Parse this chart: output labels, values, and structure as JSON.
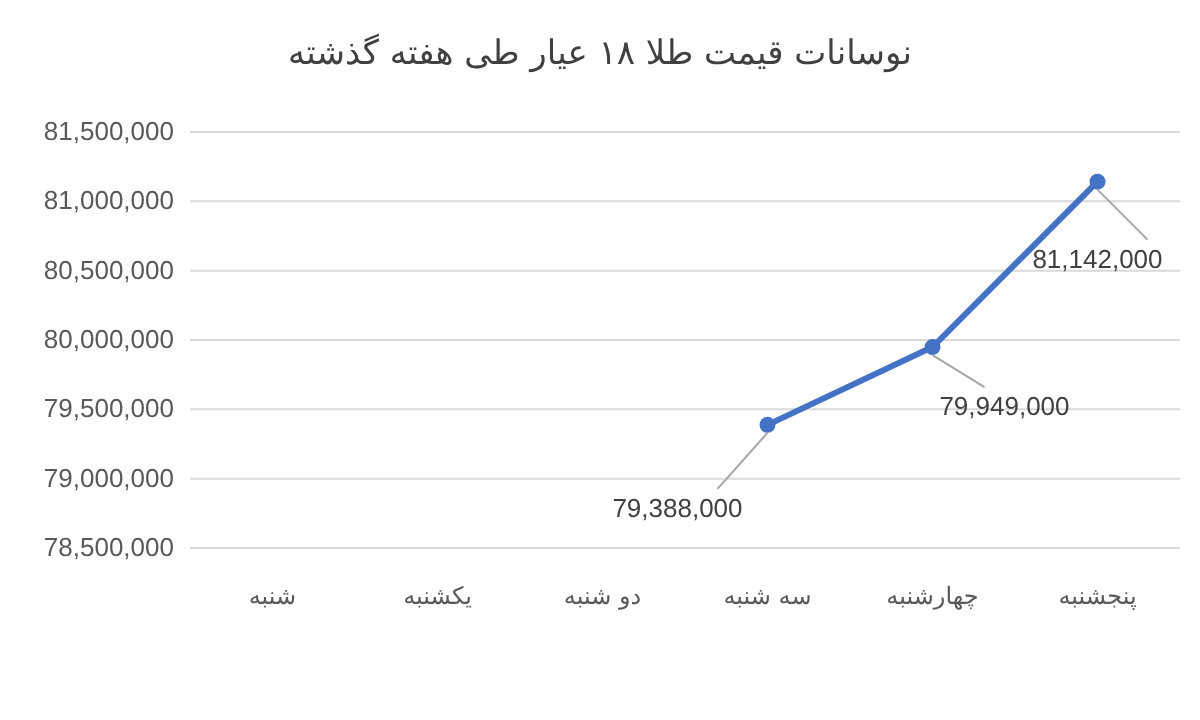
{
  "chart_data": {
    "type": "line",
    "title": "نوسانات قیمت طلا ۱۸ عیار طی هفته گذشته",
    "categories": [
      "شنبه",
      "یکشنبه",
      "دو شنبه",
      "سه شنبه",
      "چهارشنبه",
      "پنجشنبه"
    ],
    "series": [
      {
        "color": "#4472c4",
        "values": [
          null,
          null,
          null,
          79388000,
          79949000,
          81142000
        ],
        "value_labels": [
          null,
          null,
          null,
          "79,388,000",
          "79,949,000",
          "81,142,000"
        ]
      }
    ],
    "ylim": [
      78500000,
      81500000
    ],
    "yticks": [
      {
        "value": 78500000,
        "label": "78,500,000"
      },
      {
        "value": 79000000,
        "label": "79,000,000"
      },
      {
        "value": 79500000,
        "label": "79,500,000"
      },
      {
        "value": 80000000,
        "label": "80,000,000"
      },
      {
        "value": 80500000,
        "label": "80,500,000"
      },
      {
        "value": 81000000,
        "label": "81,000,000"
      },
      {
        "value": 81500000,
        "label": "81,500,000"
      }
    ],
    "grid": "y",
    "marker": "circle",
    "line_style": "solid"
  }
}
